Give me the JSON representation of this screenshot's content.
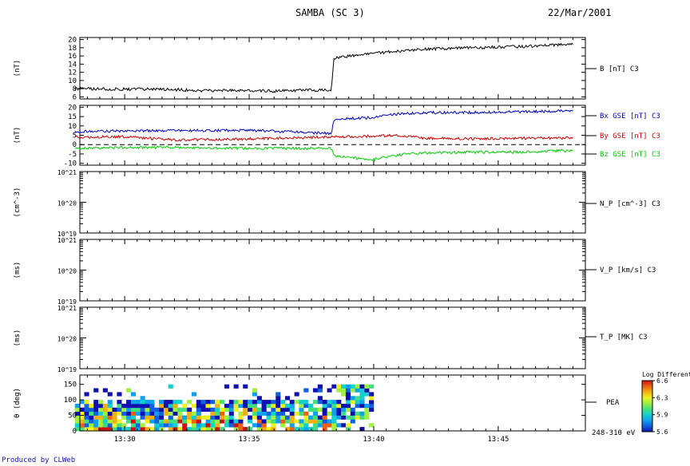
{
  "header": {
    "title": "SAMBA (SC 3)",
    "date": "22/Mar/2001"
  },
  "credit": "Produced by CLWeb",
  "colors": {
    "bx": "#d00000",
    "by": "#00d000",
    "bz": "#0000c0",
    "axis": "#000000"
  },
  "time_axis": {
    "ticks": [
      "13:30",
      "13:35",
      "13:40",
      "13:45"
    ]
  },
  "chart_data": [
    {
      "type": "line",
      "ylabel": "(nT)",
      "ylim": [
        6,
        20
      ],
      "yticks": [
        6,
        8,
        10,
        12,
        14,
        16,
        18,
        20
      ],
      "series": [
        {
          "name": "B [nT] C3",
          "color": "#000000",
          "x": [
            "13:28",
            "13:30",
            "13:32",
            "13:33",
            "13:35",
            "13:36",
            "13:37",
            "13:38.3",
            "13:38.4",
            "13:39",
            "13:40",
            "13:41",
            "13:42",
            "13:44",
            "13:46",
            "13:48"
          ],
          "values": [
            8,
            7.9,
            7.8,
            7.5,
            7.6,
            7.4,
            7.6,
            7.7,
            15.5,
            16,
            16.6,
            17.2,
            17.6,
            18,
            18.3,
            18.8
          ]
        }
      ]
    },
    {
      "type": "line",
      "ylabel": "(nT)",
      "ylim": [
        -10,
        20
      ],
      "yticks": [
        -10,
        -5,
        0,
        5,
        10,
        15,
        20
      ],
      "zero_line": true,
      "series": [
        {
          "name": "Bx GSE [nT] C3",
          "color": "#0000c0",
          "x": [
            "13:28",
            "13:30",
            "13:32",
            "13:35",
            "13:38.3",
            "13:38.4",
            "13:39",
            "13:40",
            "13:41",
            "13:42",
            "13:44",
            "13:46",
            "13:48"
          ],
          "values": [
            7,
            7.3,
            7.5,
            7.6,
            6,
            13,
            14,
            14.5,
            16.5,
            17,
            17.2,
            17.6,
            18
          ]
        },
        {
          "name": "By GSE [nT] C3",
          "color": "#d00000",
          "x": [
            "13:28",
            "13:30",
            "13:32",
            "13:35",
            "13:38",
            "13:40",
            "13:41",
            "13:42",
            "13:44",
            "13:46",
            "13:48"
          ],
          "values": [
            4,
            4.2,
            2.5,
            3,
            4,
            4.5,
            5,
            3.5,
            3,
            3.5,
            3.5
          ]
        },
        {
          "name": "Bz GSE [nT] C3",
          "color": "#00d000",
          "x": [
            "13:28",
            "13:30",
            "13:32",
            "13:35",
            "13:38.3",
            "13:38.4",
            "13:39",
            "13:40",
            "13:41",
            "13:42",
            "13:44",
            "13:46",
            "13:48"
          ],
          "values": [
            -2,
            -1.5,
            -1.5,
            -2,
            -2,
            -6,
            -7,
            -8,
            -5.5,
            -4.5,
            -4,
            -4,
            -3
          ]
        }
      ]
    },
    {
      "type": "line",
      "ylabel": "(cm^-3)",
      "log": true,
      "ytick_labels": [
        "10^21",
        "10^20",
        "10^19"
      ],
      "series": [
        {
          "name": "N_P [cm^-3] C3",
          "values": []
        }
      ]
    },
    {
      "type": "line",
      "ylabel": "(ms)",
      "log": true,
      "ytick_labels": [
        "10^21",
        "10^20",
        "10^19"
      ],
      "series": [
        {
          "name": "V_P [km/s] C3",
          "values": []
        }
      ]
    },
    {
      "type": "line",
      "ylabel": "(ms)",
      "log": true,
      "ytick_labels": [
        "10^21",
        "10^20",
        "10^19"
      ],
      "series": [
        {
          "name": "T_P [MK] C3",
          "values": []
        }
      ]
    },
    {
      "type": "heatmap",
      "ylabel": "θ (deg)",
      "ylim": [
        0,
        180
      ],
      "yticks": [
        0,
        50,
        100,
        150
      ],
      "label": "PEA",
      "energy_label": "248-310 eV",
      "x_range": [
        "13:28",
        "13:40"
      ],
      "y_range": [
        0,
        150
      ],
      "colorbar": {
        "title": "Log Differential",
        "ticks": [
          "6.6",
          "6.3",
          "5.9",
          "5.6"
        ],
        "range": [
          5.6,
          6.6
        ]
      }
    }
  ]
}
